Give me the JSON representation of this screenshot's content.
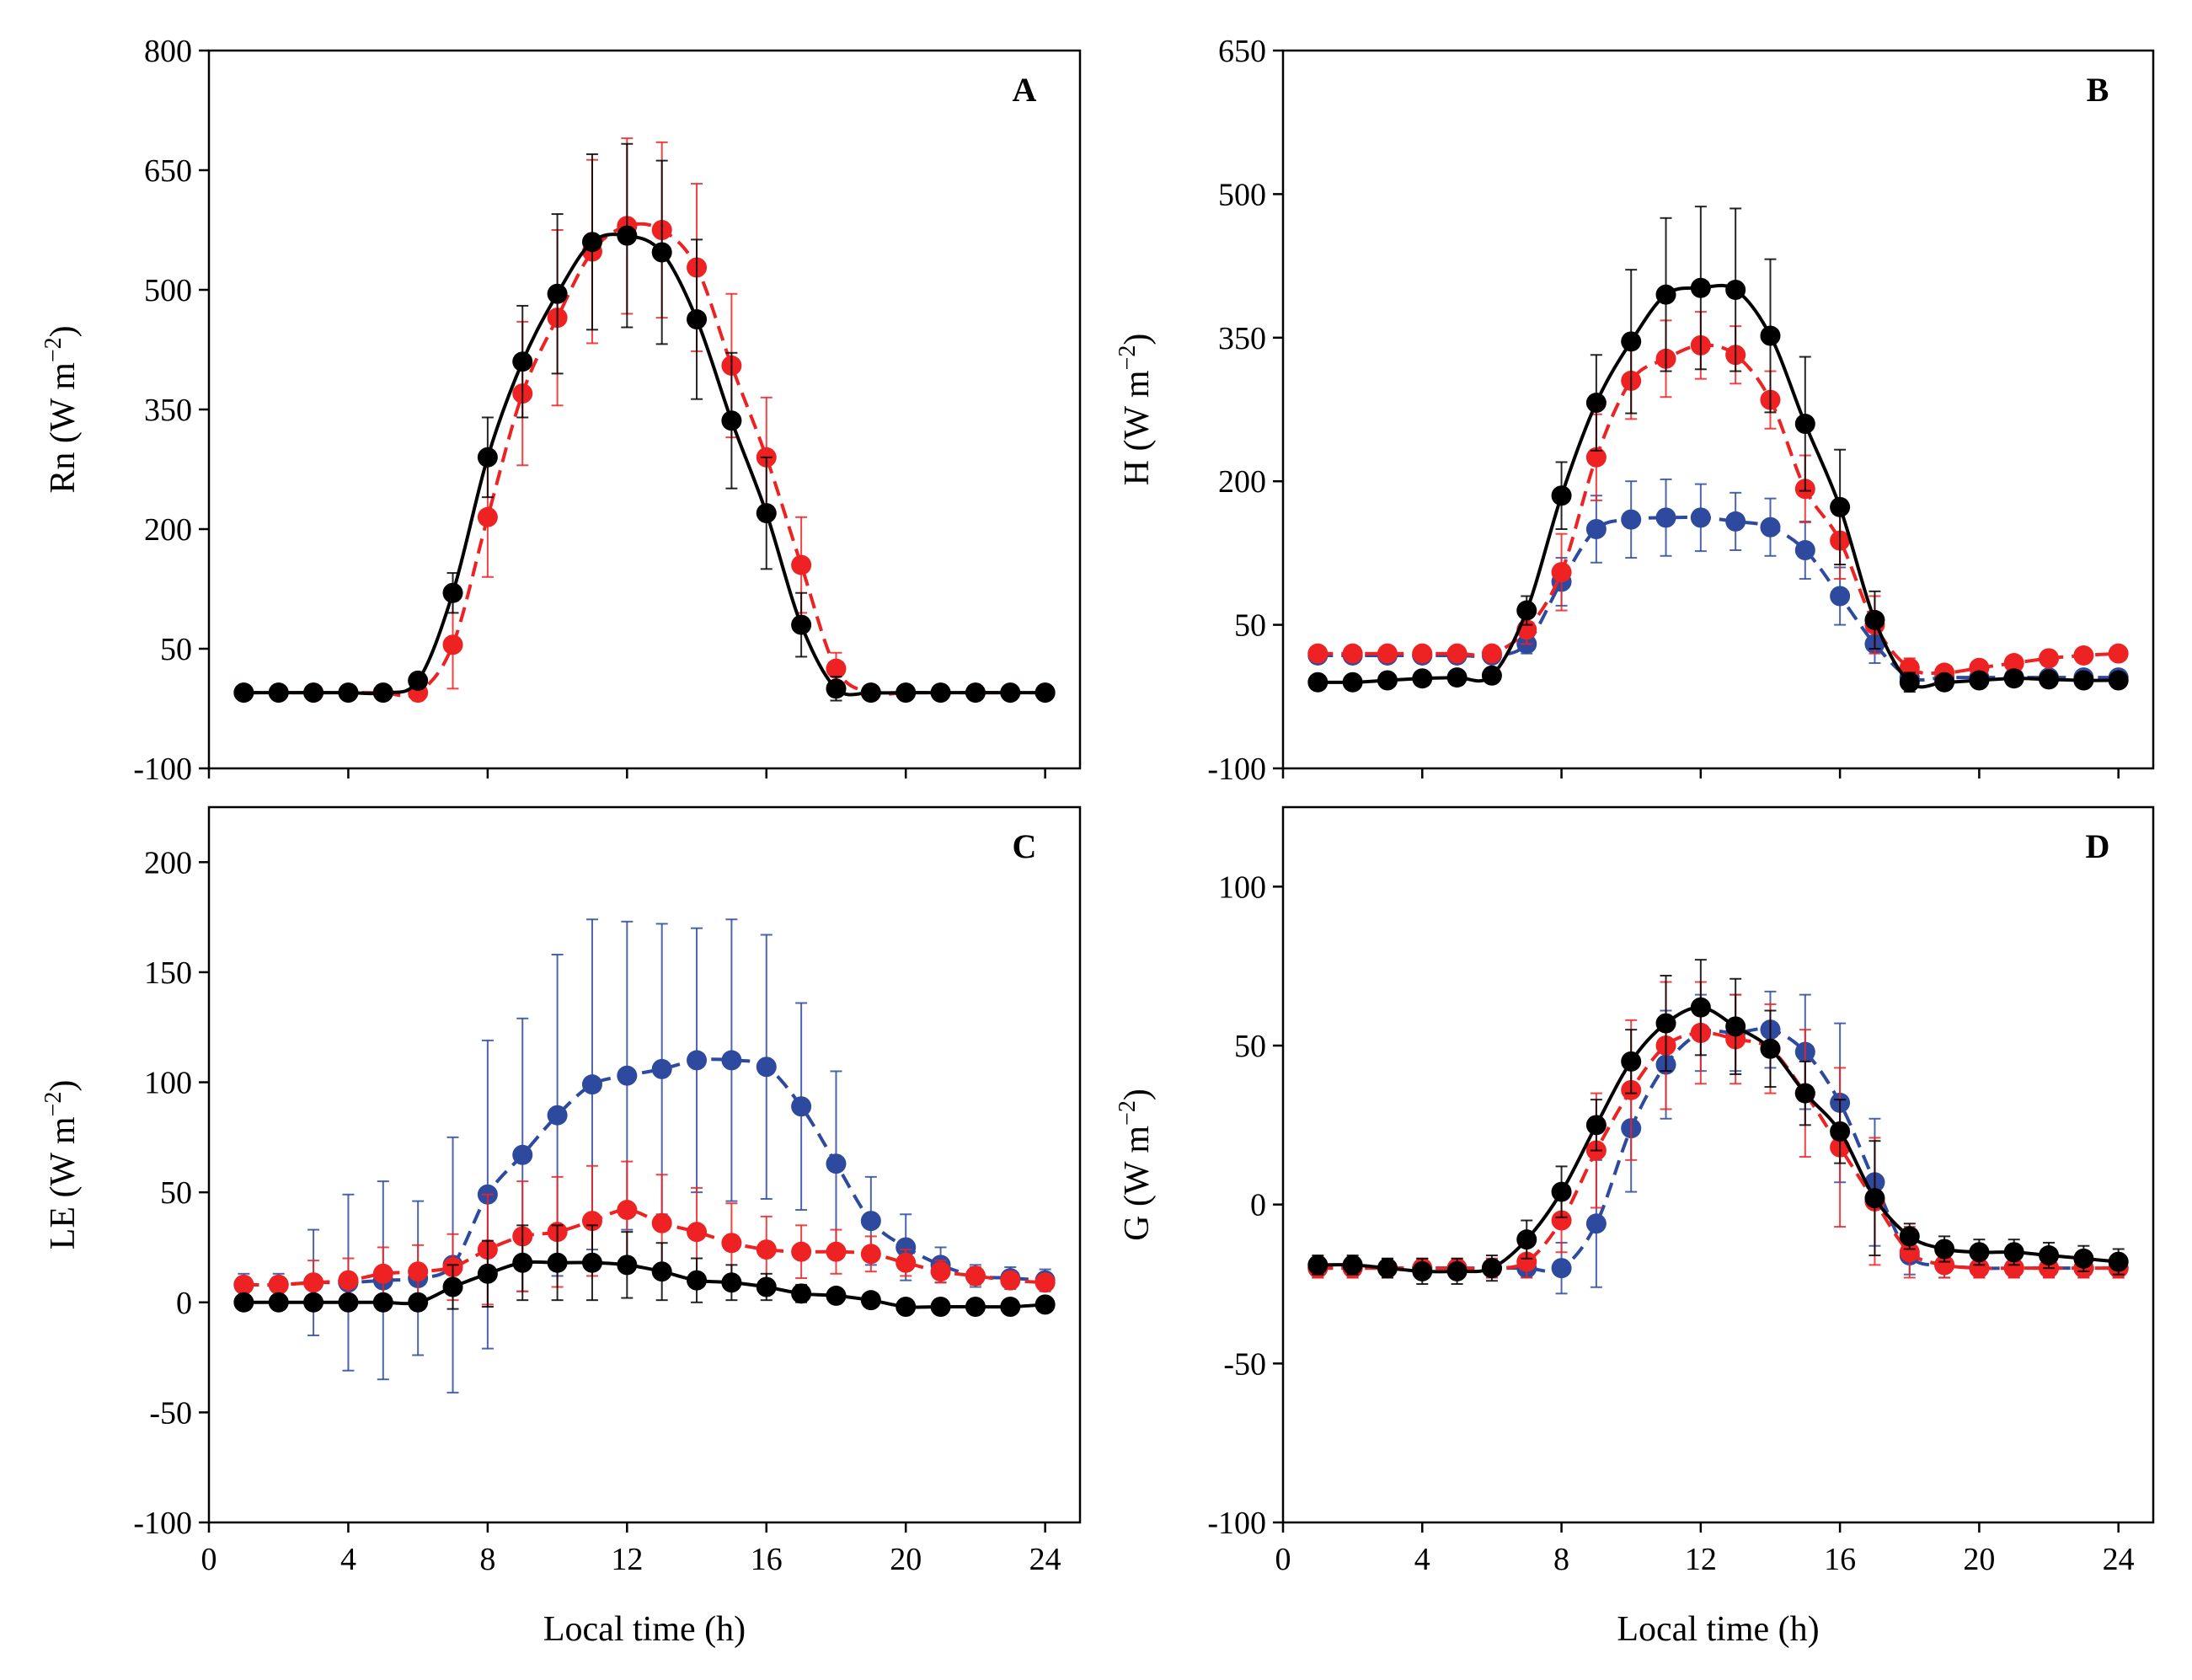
{
  "chart_data": [
    {
      "type": "line",
      "panel_label": "A",
      "ylabel": "Rn (W m",
      "ylabel_sup": "−2",
      "ylabel_end": ")",
      "xlabel": "",
      "ylim": [
        -100,
        800
      ],
      "yticks": [
        -100,
        50,
        200,
        350,
        500,
        650,
        800
      ],
      "ytick_labels": [
        "-100",
        "50",
        "200",
        "350",
        "500",
        "650",
        "800"
      ],
      "xlim": [
        0,
        25
      ],
      "xticks": [
        0,
        4,
        8,
        12,
        16,
        20,
        24
      ],
      "xtick_labels": [],
      "x": [
        1,
        2,
        3,
        4,
        5,
        6,
        7,
        8,
        9,
        10,
        11,
        12,
        13,
        14,
        15,
        16,
        17,
        18,
        19,
        20,
        21,
        22,
        23,
        24
      ],
      "series": [
        {
          "name": "blue",
          "color": "#2e4a9e",
          "dash": true,
          "visible": false,
          "values": [
            -5,
            -5,
            -5,
            -5,
            -5,
            -5,
            55,
            215,
            370,
            465,
            548,
            580,
            575,
            528,
            405,
            290,
            155,
            25,
            -5,
            -5,
            -5,
            -5,
            -5,
            -5
          ],
          "err": [
            0,
            0,
            0,
            0,
            0,
            10,
            55,
            75,
            90,
            110,
            115,
            110,
            110,
            105,
            90,
            75,
            60,
            20,
            5,
            0,
            0,
            0,
            0,
            0
          ]
        },
        {
          "name": "red",
          "color": "#ee2222",
          "dash": true,
          "values": [
            -5,
            -5,
            -5,
            -5,
            -5,
            -5,
            55,
            215,
            370,
            465,
            548,
            580,
            575,
            528,
            405,
            290,
            155,
            25,
            -5,
            -5,
            -5,
            -5,
            -5,
            -5
          ],
          "err": [
            0,
            0,
            0,
            0,
            0,
            10,
            55,
            75,
            90,
            110,
            115,
            110,
            110,
            105,
            90,
            75,
            60,
            20,
            5,
            0,
            0,
            0,
            0,
            0
          ]
        },
        {
          "name": "black",
          "color": "#000000",
          "dash": false,
          "values": [
            -5,
            -5,
            -5,
            -5,
            -5,
            10,
            120,
            290,
            410,
            495,
            560,
            568,
            547,
            463,
            336,
            220,
            80,
            0,
            -5,
            -5,
            -5,
            -5,
            -5,
            -5
          ],
          "err": [
            0,
            0,
            0,
            0,
            0,
            5,
            25,
            50,
            70,
            100,
            110,
            115,
            115,
            100,
            85,
            70,
            40,
            15,
            5,
            0,
            0,
            0,
            0,
            0
          ]
        }
      ]
    },
    {
      "type": "line",
      "panel_label": "B",
      "ylabel": "H (W m",
      "ylabel_sup": "−2",
      "ylabel_end": ")",
      "xlabel": "",
      "ylim": [
        -100,
        650
      ],
      "yticks": [
        -100,
        50,
        200,
        350,
        500,
        650
      ],
      "ytick_labels": [
        "-100",
        "50",
        "200",
        "350",
        "500",
        "650"
      ],
      "xlim": [
        0,
        25
      ],
      "xticks": [
        0,
        4,
        8,
        12,
        16,
        20,
        24
      ],
      "xtick_labels": [],
      "x": [
        1,
        2,
        3,
        4,
        5,
        6,
        7,
        8,
        9,
        10,
        11,
        12,
        13,
        14,
        15,
        16,
        17,
        18,
        19,
        20,
        21,
        22,
        23,
        24
      ],
      "series": [
        {
          "name": "blue",
          "color": "#2e4a9e",
          "dash": true,
          "values": [
            18,
            18,
            18,
            18,
            18,
            18,
            30,
            95,
            150,
            160,
            162,
            162,
            158,
            152,
            128,
            80,
            30,
            -5,
            -5,
            -5,
            -5,
            -5,
            -5,
            -5
          ],
          "err": [
            5,
            5,
            5,
            5,
            5,
            5,
            10,
            25,
            35,
            40,
            40,
            35,
            30,
            30,
            30,
            30,
            20,
            10,
            5,
            5,
            5,
            5,
            5,
            5
          ]
        },
        {
          "name": "red",
          "color": "#ee2222",
          "dash": true,
          "values": [
            20,
            20,
            20,
            20,
            20,
            20,
            45,
            105,
            225,
            305,
            328,
            342,
            332,
            285,
            192,
            138,
            50,
            5,
            0,
            5,
            10,
            15,
            18,
            20
          ],
          "err": [
            5,
            5,
            5,
            5,
            5,
            5,
            15,
            40,
            45,
            40,
            40,
            35,
            30,
            30,
            35,
            40,
            30,
            10,
            5,
            5,
            5,
            5,
            5,
            5
          ]
        },
        {
          "name": "black",
          "color": "#000000",
          "dash": false,
          "values": [
            -10,
            -10,
            -8,
            -6,
            -5,
            -3,
            65,
            185,
            282,
            346,
            395,
            402,
            400,
            352,
            260,
            173,
            55,
            -10,
            -10,
            -8,
            -6,
            -7,
            -8,
            -8
          ],
          "err": [
            5,
            5,
            5,
            5,
            5,
            5,
            15,
            35,
            50,
            75,
            80,
            85,
            85,
            80,
            70,
            60,
            30,
            10,
            5,
            5,
            5,
            5,
            5,
            5
          ]
        }
      ]
    },
    {
      "type": "line",
      "panel_label": "C",
      "ylabel": "LE (W m",
      "ylabel_sup": "−2",
      "ylabel_end": ")",
      "xlabel": "",
      "ylim": [
        -100,
        225
      ],
      "yticks": [
        -100,
        -50,
        0,
        50,
        100,
        150,
        200
      ],
      "ytick_labels": [
        "-100",
        "-50",
        "0",
        "50",
        "100",
        "150",
        "200"
      ],
      "xlim": [
        0,
        25
      ],
      "xticks": [
        0,
        4,
        8,
        12,
        16,
        20,
        24
      ],
      "xtick_labels": [],
      "x": [
        1,
        2,
        3,
        4,
        5,
        6,
        7,
        8,
        9,
        10,
        11,
        12,
        13,
        14,
        15,
        16,
        17,
        18,
        19,
        20,
        21,
        22,
        23,
        24
      ],
      "series": [
        {
          "name": "blue",
          "color": "#2e4a9e",
          "dash": true,
          "values": [
            8,
            8,
            9,
            9,
            10,
            11,
            17,
            49,
            67,
            85,
            99,
            103,
            106,
            110,
            110,
            107,
            89,
            63,
            37,
            25,
            17,
            12,
            11,
            10
          ],
          "err": [
            5,
            5,
            24,
            40,
            45,
            35,
            58,
            70,
            62,
            73,
            75,
            70,
            66,
            60,
            64,
            60,
            47,
            42,
            20,
            15,
            8,
            5,
            5,
            5
          ]
        },
        {
          "name": "red",
          "color": "#ee2222",
          "dash": true,
          "values": [
            8,
            8,
            9,
            10,
            13,
            14,
            16,
            24,
            30,
            32,
            37,
            42,
            36,
            32,
            27,
            24,
            23,
            23,
            22,
            18,
            14,
            12,
            10,
            9
          ],
          "err": [
            3,
            3,
            10,
            10,
            12,
            12,
            15,
            25,
            25,
            25,
            25,
            22,
            22,
            20,
            18,
            15,
            12,
            10,
            8,
            6,
            5,
            4,
            3,
            3
          ]
        },
        {
          "name": "black",
          "color": "#000000",
          "dash": false,
          "values": [
            0,
            0,
            0,
            0,
            0,
            0,
            7,
            13,
            18,
            18,
            18,
            17,
            14,
            10,
            9,
            7,
            4,
            3,
            1,
            -2,
            -2,
            -2,
            -2,
            -1
          ],
          "err": [
            0,
            0,
            0,
            0,
            0,
            2,
            10,
            15,
            17,
            17,
            17,
            15,
            13,
            10,
            8,
            6,
            4,
            3,
            2,
            2,
            2,
            2,
            2,
            2
          ]
        }
      ]
    },
    {
      "type": "line",
      "panel_label": "D",
      "ylabel": "G (W m",
      "ylabel_sup": "−2",
      "ylabel_end": ")",
      "xlabel": "Local time (h)",
      "ylim": [
        -100,
        125
      ],
      "yticks": [
        -100,
        -50,
        0,
        50,
        100
      ],
      "ytick_labels": [
        "-100",
        "-50",
        "0",
        "50",
        "100"
      ],
      "xlim": [
        0,
        25
      ],
      "xticks": [
        0,
        4,
        8,
        12,
        16,
        20,
        24
      ],
      "xtick_labels": [
        "0",
        "4",
        "8",
        "12",
        "16",
        "20",
        "24"
      ],
      "x": [
        1,
        2,
        3,
        4,
        5,
        6,
        7,
        8,
        9,
        10,
        11,
        12,
        13,
        14,
        15,
        16,
        17,
        18,
        19,
        20,
        21,
        22,
        23,
        24
      ],
      "series": [
        {
          "name": "blue",
          "color": "#2e4a9e",
          "dash": true,
          "values": [
            -20,
            -20,
            -20,
            -20,
            -20,
            -20,
            -20,
            -20,
            -6,
            24,
            44,
            54,
            54,
            55,
            48,
            32,
            7,
            -16,
            -19,
            -20,
            -20,
            -20,
            -20,
            -20
          ],
          "err": [
            3,
            3,
            3,
            3,
            3,
            3,
            3,
            8,
            20,
            20,
            17,
            12,
            12,
            12,
            18,
            25,
            20,
            6,
            4,
            3,
            3,
            3,
            3,
            3
          ]
        },
        {
          "name": "red",
          "color": "#ee2222",
          "dash": true,
          "values": [
            -20,
            -20,
            -20,
            -20,
            -20,
            -20,
            -18,
            -5,
            17,
            36,
            50,
            54,
            52,
            49,
            35,
            18,
            1,
            -15,
            -19,
            -20,
            -20,
            -20,
            -20,
            -20
          ],
          "err": [
            3,
            3,
            3,
            3,
            3,
            3,
            5,
            10,
            18,
            22,
            20,
            16,
            14,
            14,
            20,
            25,
            20,
            8,
            4,
            3,
            3,
            3,
            3,
            3
          ]
        },
        {
          "name": "black",
          "color": "#000000",
          "dash": false,
          "values": [
            -19,
            -19,
            -20,
            -21,
            -21,
            -20,
            -11,
            4,
            25,
            45,
            57,
            62,
            56,
            49,
            35,
            23,
            2,
            -10,
            -14,
            -15,
            -15,
            -16,
            -17,
            -18
          ],
          "err": [
            3,
            3,
            3,
            4,
            4,
            4,
            6,
            8,
            8,
            10,
            15,
            15,
            15,
            12,
            10,
            10,
            18,
            4,
            4,
            4,
            4,
            4,
            4,
            4
          ]
        }
      ]
    }
  ],
  "panel_C_xlabel": "Local time (h)",
  "panel_C_xtick_labels": [
    "0",
    "4",
    "8",
    "12",
    "16",
    "20",
    "24"
  ]
}
